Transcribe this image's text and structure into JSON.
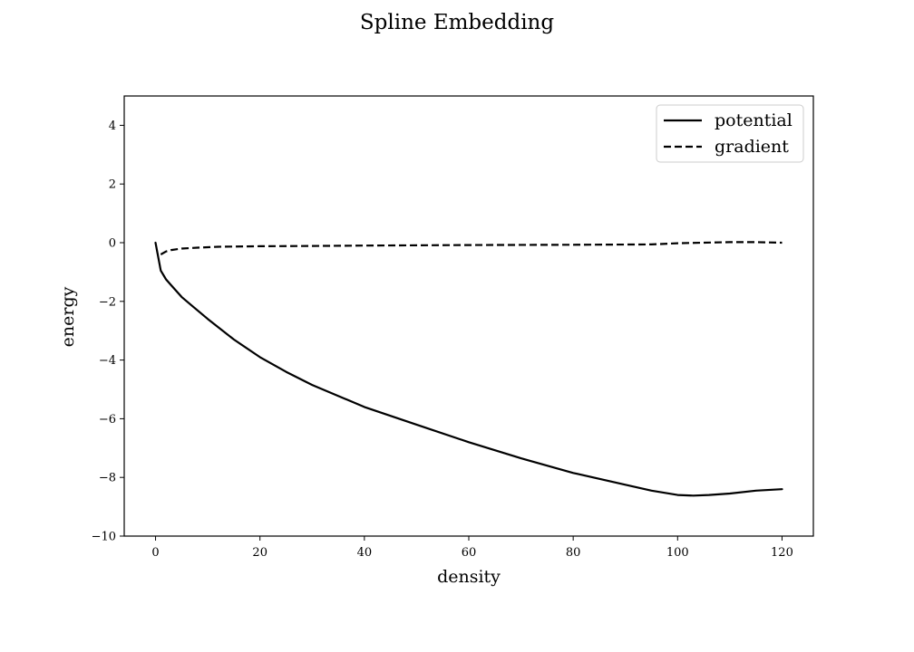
{
  "chart_data": {
    "type": "line",
    "title": "Spline Embedding",
    "xlabel": "density",
    "ylabel": "energy",
    "xlim": [
      -6,
      126
    ],
    "ylim": [
      -10,
      5
    ],
    "xticks": [
      0,
      20,
      40,
      60,
      80,
      100,
      120
    ],
    "yticks": [
      4,
      2,
      0,
      -2,
      -4,
      -6,
      -8,
      -10
    ],
    "xtick_labels": [
      "0",
      "20",
      "40",
      "60",
      "80",
      "100",
      "120"
    ],
    "ytick_labels": [
      "4",
      "2",
      "0",
      "−2",
      "−4",
      "−6",
      "−8",
      "−10"
    ],
    "grid": false,
    "legend": "top-right",
    "series": [
      {
        "name": "potential",
        "style": "solid",
        "color": "#000000",
        "x": [
          0,
          1,
          2,
          3,
          5,
          7,
          10,
          15,
          20,
          25,
          30,
          40,
          50,
          60,
          70,
          80,
          90,
          95,
          100,
          103,
          106,
          110,
          115,
          120
        ],
        "y": [
          0,
          -0.95,
          -1.25,
          -1.45,
          -1.85,
          -2.15,
          -2.6,
          -3.3,
          -3.9,
          -4.4,
          -4.85,
          -5.6,
          -6.2,
          -6.8,
          -7.35,
          -7.85,
          -8.25,
          -8.45,
          -8.6,
          -8.62,
          -8.6,
          -8.55,
          -8.45,
          -8.4
        ]
      },
      {
        "name": "gradient",
        "style": "dashed",
        "color": "#000000",
        "x": [
          1,
          2,
          3,
          5,
          8,
          12,
          20,
          30,
          40,
          60,
          80,
          95,
          100,
          105,
          110,
          115,
          120
        ],
        "y": [
          -0.4,
          -0.3,
          -0.25,
          -0.2,
          -0.17,
          -0.14,
          -0.12,
          -0.11,
          -0.1,
          -0.08,
          -0.07,
          -0.06,
          -0.02,
          0.0,
          0.02,
          0.02,
          0.0
        ]
      }
    ]
  }
}
